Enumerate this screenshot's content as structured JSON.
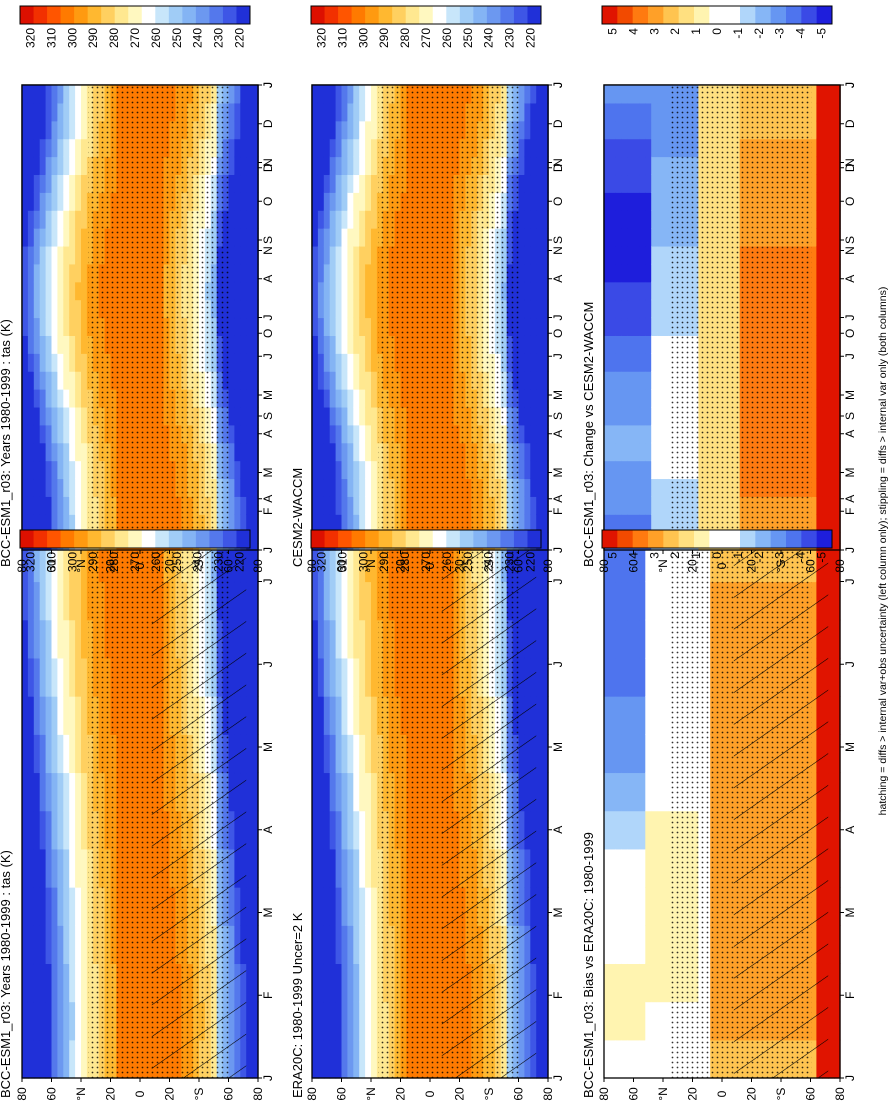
{
  "footnote": "hatching = diffs > internal var+obs uncertainty (left column only); stippling = diffs > internal var only (both columns)",
  "colors": {
    "temperature_scale": [
      "#2030d8",
      "#3e56e6",
      "#5478ec",
      "#6c98f0",
      "#84b4f4",
      "#a0ccf6",
      "#c8e6fa",
      "#ffffff",
      "#fff8c0",
      "#ffe890",
      "#ffd060",
      "#ffb830",
      "#ff9a10",
      "#ff7a00",
      "#ff5500",
      "#f23000",
      "#dd1000"
    ],
    "difference_scale": [
      "#1e1edc",
      "#3a4ae6",
      "#4e74ee",
      "#6696f2",
      "#86b6f6",
      "#b0d6fa",
      "#ffffff",
      "#ffffff",
      "#fff4b0",
      "#ffe080",
      "#ffc450",
      "#ffa028",
      "#ff7a10",
      "#f24a00",
      "#e01400"
    ]
  },
  "chart_data": [
    {
      "type": "heatmap",
      "id": "p1",
      "title": "BCC-ESM1_r03: Years 1980-1999 : tas (K)",
      "x": [
        "J",
        "F",
        "M",
        "A",
        "M",
        "J",
        "J",
        "A",
        "S",
        "O",
        "N",
        "D",
        "J"
      ],
      "y": [
        "80",
        "60",
        "°N",
        "20",
        "0",
        "20",
        "°S",
        "60",
        "80"
      ],
      "variable": "tas",
      "units": "K",
      "colorbar": {
        "ticks": [
          "320",
          "310",
          "300",
          "290",
          "280",
          "270",
          "260",
          "250",
          "240",
          "230",
          "220"
        ]
      },
      "overlays": [
        "stippling",
        "hatching"
      ]
    },
    {
      "type": "heatmap",
      "id": "p2",
      "title": "BCC-ESM1_r03: Years 1980-1999 : tas (K)",
      "x": [
        "J",
        "F",
        "M",
        "A",
        "M",
        "J",
        "J",
        "A",
        "S",
        "O",
        "N",
        "D",
        "J"
      ],
      "y": [
        "80",
        "60",
        "°N",
        "20",
        "0",
        "20",
        "°S",
        "60",
        "80"
      ],
      "variable": "tas",
      "units": "K",
      "colorbar": {
        "ticks": [
          "320",
          "310",
          "300",
          "290",
          "280",
          "270",
          "260",
          "250",
          "240",
          "230",
          "220"
        ]
      },
      "overlays": [
        "stippling"
      ]
    },
    {
      "type": "heatmap",
      "id": "p3",
      "title": "ERA20C: 1980-1999 Uncer=2 K",
      "x": [
        "J",
        "F",
        "M",
        "A",
        "M",
        "J",
        "J",
        "A",
        "S",
        "O",
        "N",
        "D",
        "J"
      ],
      "y": [
        "80",
        "60",
        "°N",
        "20",
        "0",
        "20",
        "°S",
        "60",
        "80"
      ],
      "units": "K",
      "colorbar": {
        "ticks": [
          "320",
          "310",
          "300",
          "290",
          "280",
          "270",
          "260",
          "250",
          "240",
          "230",
          "220"
        ]
      },
      "overlays": [
        "stippling",
        "hatching"
      ]
    },
    {
      "type": "heatmap",
      "id": "p4",
      "title": "CESM2-WACCM",
      "x": [
        "J",
        "F",
        "M",
        "A",
        "M",
        "J",
        "J",
        "A",
        "S",
        "O",
        "N",
        "D",
        "J"
      ],
      "y": [
        "80",
        "60",
        "°N",
        "20",
        "0",
        "20",
        "°S",
        "60",
        "80"
      ],
      "units": "K",
      "colorbar": {
        "ticks": [
          "320",
          "310",
          "300",
          "290",
          "280",
          "270",
          "260",
          "250",
          "240",
          "230",
          "220"
        ]
      },
      "overlays": [
        "stippling"
      ]
    },
    {
      "type": "heatmap",
      "id": "p5",
      "title": "BCC-ESM1_r03: Bias vs ERA20C: 1980-1999",
      "x": [
        "J",
        "F",
        "M",
        "A",
        "M",
        "J",
        "J",
        "A",
        "S",
        "O",
        "N",
        "D",
        "J"
      ],
      "y": [
        "80",
        "60",
        "°N",
        "20",
        "0",
        "20",
        "°S",
        "60",
        "80"
      ],
      "units": "K",
      "colorbar": {
        "ticks": [
          "5",
          "4",
          "3",
          "2",
          "1",
          "0",
          "-1",
          "-2",
          "-3",
          "-4",
          "-5"
        ]
      },
      "overlays": [
        "stippling",
        "hatching"
      ]
    },
    {
      "type": "heatmap",
      "id": "p6",
      "title": "BCC-ESM1_r03: Change vs CESM2-WACCM",
      "x": [
        "J",
        "F",
        "M",
        "A",
        "M",
        "J",
        "J",
        "A",
        "S",
        "O",
        "N",
        "D",
        "J"
      ],
      "y": [
        "80",
        "60",
        "°N",
        "20",
        "0",
        "20",
        "°S",
        "60",
        "80"
      ],
      "units": "K",
      "colorbar": {
        "ticks": [
          "5",
          "4",
          "3",
          "2",
          "1",
          "0",
          "-1",
          "-2",
          "-3",
          "-4",
          "-5"
        ]
      },
      "overlays": [
        "stippling"
      ]
    }
  ]
}
